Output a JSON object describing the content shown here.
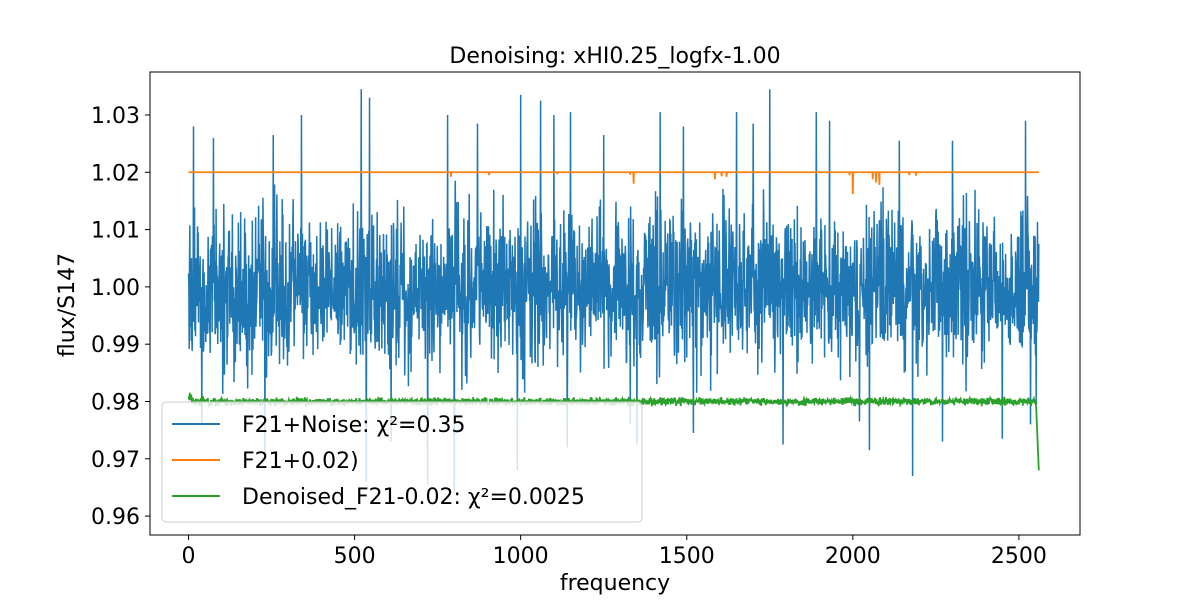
{
  "chart_data": {
    "type": "line",
    "title": "Denoising: xHI0.25_logfx-1.00",
    "xlabel": "frequency",
    "ylabel": "flux/S147",
    "xlim": [
      -116,
      2684
    ],
    "ylim": [
      0.9567,
      1.0375
    ],
    "x_ticks": [
      0,
      500,
      1000,
      1500,
      2000,
      2500
    ],
    "x_tick_labels": [
      "0",
      "500",
      "1000",
      "1500",
      "2000",
      "2500"
    ],
    "y_ticks": [
      0.96,
      0.97,
      0.98,
      0.99,
      1.0,
      1.01,
      1.02,
      1.03
    ],
    "y_tick_labels": [
      "0.96",
      "0.97",
      "0.98",
      "0.99",
      "1.00",
      "1.01",
      "1.02",
      "1.03"
    ],
    "grid": false,
    "legend_position": "lower-left",
    "series": [
      {
        "name": "F21+Noise: χ²=0.35",
        "color": "#1f77b4",
        "x_range": [
          0,
          2560
        ],
        "n_points": 2561,
        "center": 1.0,
        "min": 0.9635,
        "max": 1.0345,
        "extremes": [
          [
            15,
            1.028
          ],
          [
            40,
            0.976
          ],
          [
            75,
            1.026
          ],
          [
            230,
            0.971
          ],
          [
            255,
            1.0265
          ],
          [
            340,
            1.03
          ],
          [
            520,
            1.0345
          ],
          [
            535,
            0.966
          ],
          [
            545,
            1.033
          ],
          [
            610,
            0.973
          ],
          [
            720,
            0.9655
          ],
          [
            780,
            1.03
          ],
          [
            800,
            0.964
          ],
          [
            870,
            1.0285
          ],
          [
            990,
            0.968
          ],
          [
            1000,
            1.0335
          ],
          [
            1060,
            1.0325
          ],
          [
            1100,
            1.03
          ],
          [
            1140,
            0.972
          ],
          [
            1150,
            1.0305
          ],
          [
            1250,
            1.0265
          ],
          [
            1330,
            0.976
          ],
          [
            1350,
            0.9725
          ],
          [
            1420,
            1.0305
          ],
          [
            1490,
            1.028
          ],
          [
            1520,
            0.9745
          ],
          [
            1650,
            1.0305
          ],
          [
            1700,
            1.0285
          ],
          [
            1750,
            1.0345
          ],
          [
            1790,
            0.9725
          ],
          [
            1890,
            1.0305
          ],
          [
            1930,
            1.029
          ],
          [
            2020,
            0.9765
          ],
          [
            2050,
            0.9715
          ],
          [
            2140,
            1.0255
          ],
          [
            2180,
            0.967
          ],
          [
            2270,
            0.973
          ],
          [
            2300,
            1.0255
          ],
          [
            2450,
            0.9735
          ],
          [
            2520,
            1.029
          ],
          [
            2535,
            0.976
          ],
          [
            2560,
            1.0075
          ]
        ]
      },
      {
        "name": "F21+0.02)",
        "color": "#ff7f0e",
        "x_range": [
          0,
          2560
        ],
        "baseline": 1.02,
        "dips": [
          [
            790,
            1.0192
          ],
          [
            905,
            1.0195
          ],
          [
            1110,
            1.0197
          ],
          [
            1330,
            1.0196
          ],
          [
            1340,
            1.018
          ],
          [
            1585,
            1.0188
          ],
          [
            1605,
            1.0193
          ],
          [
            1620,
            1.0192
          ],
          [
            1990,
            1.0195
          ],
          [
            2000,
            1.0162
          ],
          [
            2060,
            1.0188
          ],
          [
            2070,
            1.0182
          ],
          [
            2080,
            1.0178
          ],
          [
            2170,
            1.0195
          ],
          [
            2190,
            1.0194
          ]
        ]
      },
      {
        "name": "Denoised_F21-0.02: χ²=0.0025",
        "color": "#2ca02c",
        "x_range": [
          0,
          2560
        ],
        "baseline": 0.98,
        "noise": 0.0003,
        "end_drop": [
          [
            2545,
            0.9805
          ],
          [
            2552,
            0.979
          ],
          [
            2560,
            0.968
          ]
        ]
      }
    ]
  }
}
